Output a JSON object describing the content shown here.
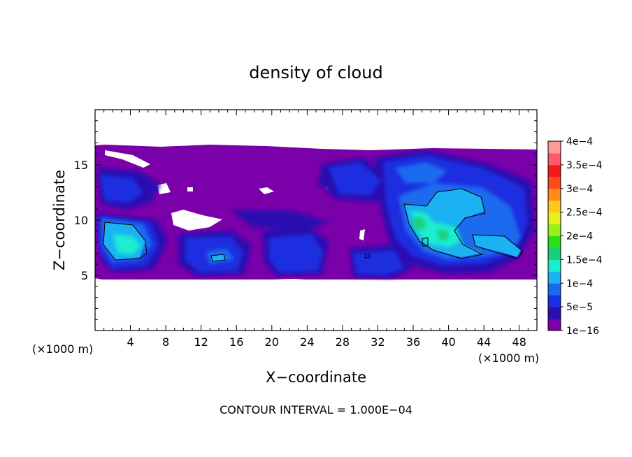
{
  "chart_data": {
    "type": "heatmap",
    "title": "density of cloud",
    "xlabel": "X−coordinate",
    "ylabel": "Z−coordinate",
    "x_unit_left": "(×1000 m)",
    "x_unit_right": "(×1000 m)",
    "xlim": [
      0,
      50
    ],
    "ylim": [
      0,
      20
    ],
    "x_ticks": [
      4,
      8,
      12,
      16,
      20,
      24,
      28,
      32,
      36,
      40,
      44,
      48
    ],
    "y_ticks": [
      5,
      10,
      15
    ],
    "footer": "CONTOUR INTERVAL = 1.000E−04",
    "colorbar": {
      "labels": [
        "1e−16",
        "5e−5",
        "1e−4",
        "1.5e−4",
        "2e−4",
        "2.5e−4",
        "3e−4",
        "3.5e−4",
        "4e−4"
      ],
      "values": [
        1e-16,
        5e-05,
        0.0001,
        0.00015,
        0.0002,
        0.00025,
        0.0003,
        0.00035,
        0.0004
      ],
      "colors": [
        "#7a00aa",
        "#2a10b0",
        "#1a2fe0",
        "#1a6aee",
        "#1ab2f0",
        "#1aeecf",
        "#1acf7a",
        "#2ee01a",
        "#9af01a",
        "#e6f01a",
        "#ffc81a",
        "#ff8c1a",
        "#ff4a1a",
        "#f51a1a",
        "#ff5a6a",
        "#ff9a9a"
      ]
    },
    "cloud_layer": {
      "z_bottom": 4.5,
      "z_top": 16.5
    }
  }
}
